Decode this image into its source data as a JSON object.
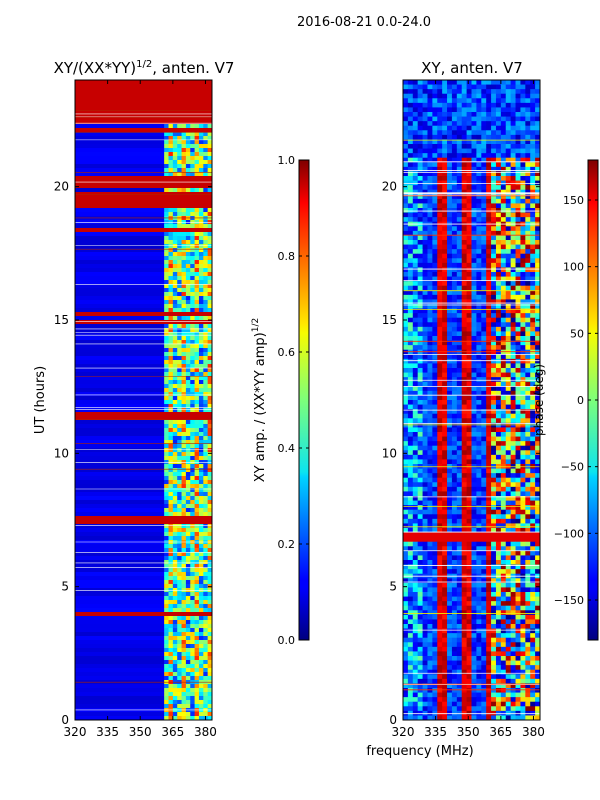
{
  "suptitle": "2016-08-21 0.0-24.0",
  "xlabel": "frequency (MHz)",
  "chart_data": [
    {
      "type": "heatmap",
      "title": "XY/(XX*YY)",
      "title_exp": "1/2",
      "title_suffix": ", anten. V7",
      "xlabel": "frequency (MHz)",
      "ylabel": "UT (hours)",
      "xlim": [
        320,
        383
      ],
      "ylim": [
        0,
        24
      ],
      "xticks": [
        320,
        335,
        350,
        365,
        380
      ],
      "yticks": [
        0,
        5,
        10,
        15,
        20
      ],
      "colorbar": {
        "label": "XY amp. / (XX*YY amp)",
        "label_exp": "1/2",
        "range": [
          0.0,
          1.0
        ],
        "ticks": [
          0.0,
          0.2,
          0.4,
          0.6,
          0.8,
          1.0
        ],
        "tick_labels": [
          "0.0",
          "0.2",
          "0.4",
          "0.6",
          "0.8",
          "1.0"
        ],
        "colormap": "jet"
      },
      "red_bands_ut": [
        22.4,
        24.0
      ],
      "active_band_mhz": [
        361,
        383
      ]
    },
    {
      "type": "heatmap",
      "title": "XY, anten. V7",
      "xlabel": "frequency (MHz)",
      "ylabel": "",
      "xlim": [
        320,
        383
      ],
      "ylim": [
        0,
        24
      ],
      "xticks": [
        320,
        335,
        350,
        365,
        380
      ],
      "yticks": [
        0,
        5,
        10,
        15,
        20
      ],
      "colorbar": {
        "label": "phase (deg)",
        "range": [
          -180,
          180
        ],
        "ticks": [
          -150,
          -100,
          -50,
          0,
          50,
          100,
          150
        ],
        "tick_labels": [
          "−150",
          "−100",
          "−50",
          "0",
          "50",
          "100",
          "150"
        ],
        "colormap": "jet"
      }
    }
  ]
}
